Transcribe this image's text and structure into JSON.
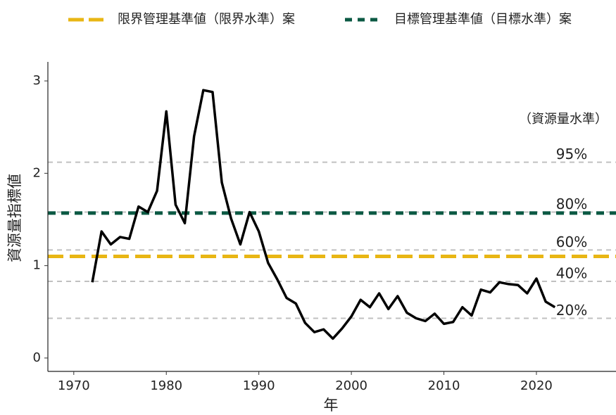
{
  "chart_data": {
    "type": "line",
    "x_label": "年",
    "y_label": "資源量指標値",
    "x": [
      1972,
      1973,
      1974,
      1975,
      1976,
      1977,
      1978,
      1979,
      1980,
      1981,
      1982,
      1983,
      1984,
      1985,
      1986,
      1987,
      1988,
      1989,
      1990,
      1991,
      1992,
      1993,
      1994,
      1995,
      1996,
      1997,
      1998,
      1999,
      2000,
      2001,
      2002,
      2003,
      2004,
      2005,
      2006,
      2007,
      2008,
      2009,
      2010,
      2011,
      2012,
      2013,
      2014,
      2015,
      2016,
      2017,
      2018,
      2019,
      2020,
      2021,
      2022
    ],
    "values": [
      0.82,
      1.37,
      1.23,
      1.31,
      1.29,
      1.64,
      1.58,
      1.81,
      2.67,
      1.66,
      1.46,
      2.4,
      2.9,
      2.88,
      1.9,
      1.51,
      1.23,
      1.58,
      1.37,
      1.03,
      0.85,
      0.65,
      0.59,
      0.38,
      0.28,
      0.31,
      0.21,
      0.32,
      0.45,
      0.63,
      0.55,
      0.7,
      0.53,
      0.67,
      0.49,
      0.43,
      0.4,
      0.48,
      0.37,
      0.39,
      0.55,
      0.46,
      0.74,
      0.71,
      0.82,
      0.8,
      0.79,
      0.7,
      0.86,
      0.61,
      0.55
    ],
    "color": "#000000",
    "xlim": [
      1967.2,
      2028.6
    ],
    "ylim": [
      -0.145,
      3.206
    ],
    "xticks": [
      1970,
      1980,
      1990,
      2000,
      2010,
      2020
    ],
    "yticks": [
      0,
      1,
      2,
      3
    ],
    "reference_lines": [
      {
        "name": "限界管理基準値（限界水準）案",
        "color": "#e8b614",
        "value": 1.1
      },
      {
        "name": "目標管理基準値（目標水準）案",
        "color": "#0b5943",
        "value": 1.57
      }
    ],
    "level_title": "（資源量水準）",
    "level_lines": [
      {
        "label": "95%",
        "value": 2.12
      },
      {
        "label": "80%",
        "value": 1.58
      },
      {
        "label": "60%",
        "value": 1.17
      },
      {
        "label": "40%",
        "value": 0.83
      },
      {
        "label": "20%",
        "value": 0.43
      }
    ]
  }
}
